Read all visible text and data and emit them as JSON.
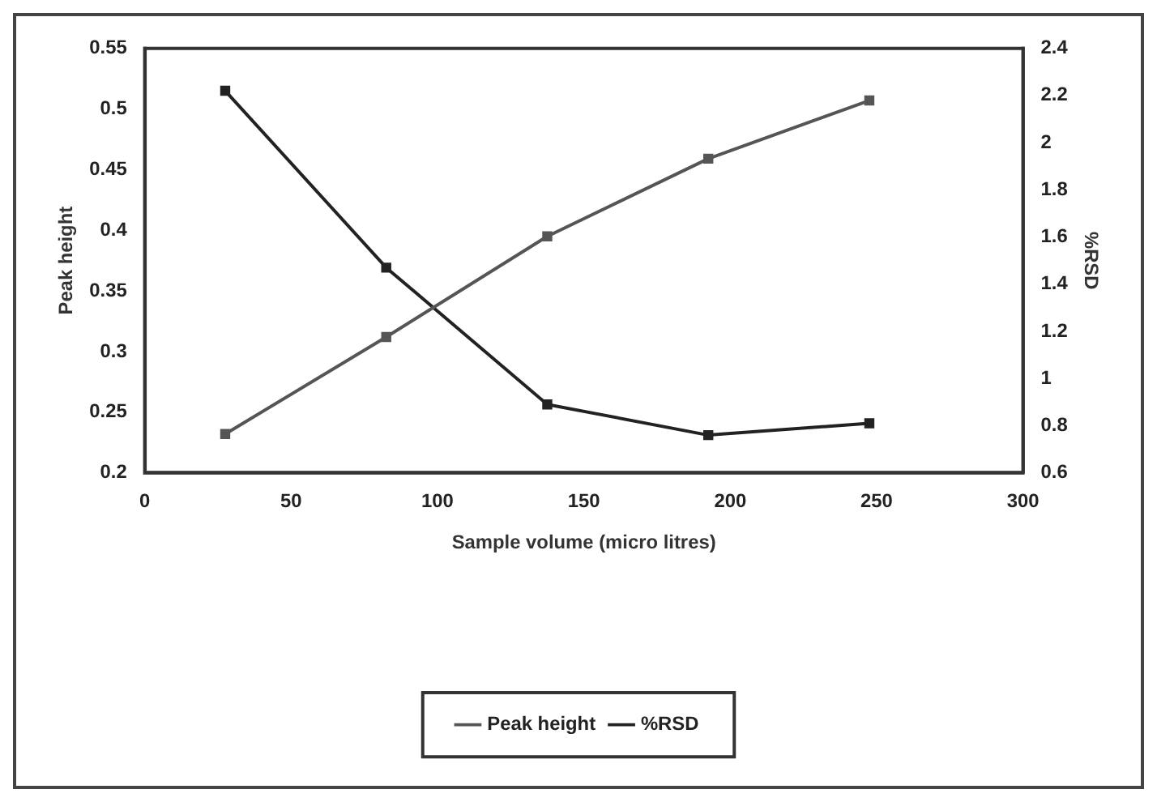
{
  "chart_data": {
    "type": "line",
    "xlabel": "Sample volume (micro litres)",
    "ylabel": "Peak height",
    "y2label": "%RSD",
    "x": [
      27.5,
      82.5,
      137.5,
      192.5,
      247.5
    ],
    "series": [
      {
        "name": "Peak height",
        "color": "#555555",
        "values": [
          0.232,
          0.312,
          0.395,
          0.459,
          0.507
        ]
      },
      {
        "name": "%RSD",
        "color": "#222222",
        "axis": "y2",
        "values": [
          2.22,
          1.47,
          0.89,
          0.76,
          0.81
        ]
      }
    ],
    "xlim": [
      0,
      300
    ],
    "xticks": [
      0,
      50,
      100,
      150,
      200,
      250,
      300
    ],
    "ylim": [
      0.2,
      0.55
    ],
    "yticks": [
      0.2,
      0.25,
      0.3,
      0.35,
      0.4,
      0.45,
      0.5,
      0.55
    ],
    "y2lim": [
      0.6,
      2.4
    ],
    "y2ticks": [
      0.6,
      0.8,
      1,
      1.2,
      1.4,
      1.6,
      1.8,
      2,
      2.2,
      2.4
    ],
    "grid": false,
    "legend": "bottom",
    "marker": "square",
    "line_style": "solid"
  }
}
